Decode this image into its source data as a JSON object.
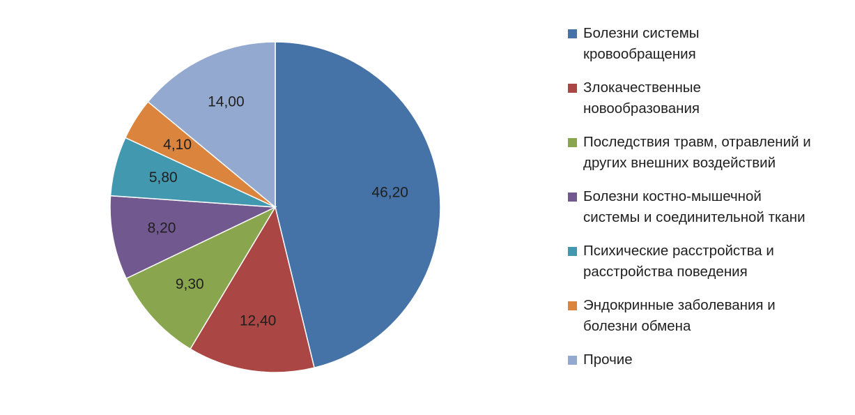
{
  "chart_data": {
    "type": "pie",
    "title": "",
    "slices": [
      {
        "name": "Болезни системы кровообращения",
        "lines": [
          "Болезни системы",
          "кровообращения"
        ],
        "value": 46.2,
        "label": "46,20",
        "color": "#4572A7"
      },
      {
        "name": "Злокачественные новообразования",
        "lines": [
          "Злокачественные",
          "новообразования"
        ],
        "value": 12.4,
        "label": "12,40",
        "color": "#AA4643"
      },
      {
        "name": "Последствия травм, отравлений и других внешних воздействий",
        "lines": [
          "Последствия травм, отравлений и",
          "других внешних воздействий"
        ],
        "value": 9.3,
        "label": "9,30",
        "color": "#89A54E"
      },
      {
        "name": "Болезни костно-мышечной системы и соединительной ткани",
        "lines": [
          "Болезни костно-мышечной",
          "системы и соединительной ткани"
        ],
        "value": 8.2,
        "label": "8,20",
        "color": "#71588F"
      },
      {
        "name": "Психические расстройства и расстройства поведения",
        "lines": [
          "Психические расстройства и",
          "расстройства поведения"
        ],
        "value": 5.8,
        "label": "5,80",
        "color": "#4198AF"
      },
      {
        "name": "Эндокринные заболевания и болезни обмена",
        "lines": [
          "Эндокринные заболевания и",
          "болезни обмена"
        ],
        "value": 4.1,
        "label": "4,10",
        "color": "#DB843D"
      },
      {
        "name": "Прочие",
        "lines": [
          "Прочие"
        ],
        "value": 14.0,
        "label": "14,00",
        "color": "#93A9CF"
      }
    ],
    "start_angle": "12 o'clock",
    "direction": "clockwise",
    "legend_position": "right"
  }
}
